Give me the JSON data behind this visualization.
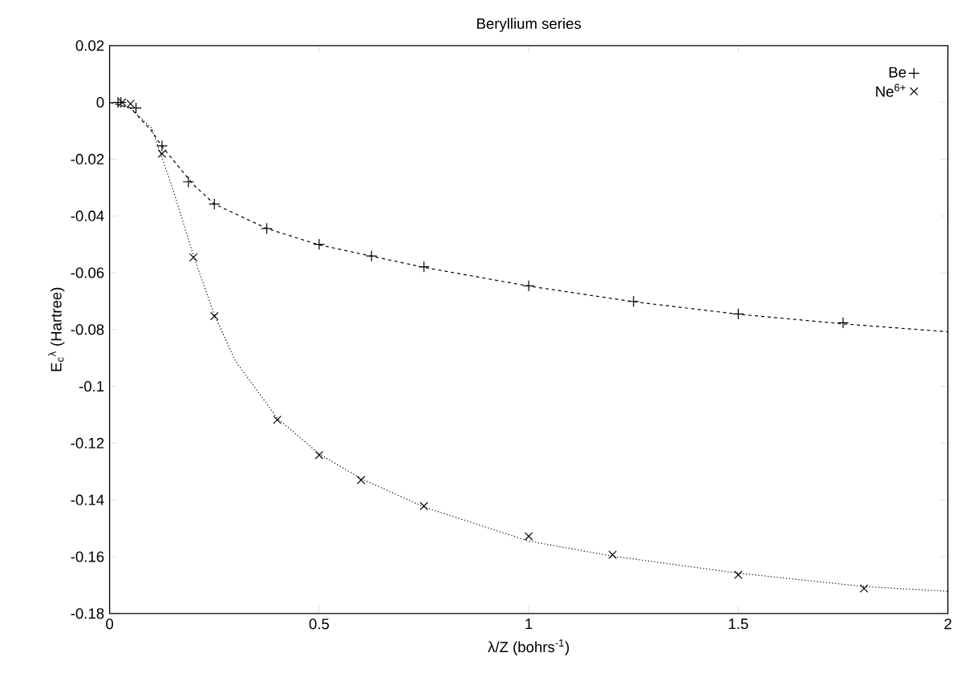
{
  "chart_data": {
    "type": "scatter",
    "title": "Beryllium series",
    "xlabel": "λ/Z (bohrs$^{-1}$)",
    "ylabel": "E$_{c}$$^{λ}$ (Hartree)",
    "xlim": [
      0,
      2
    ],
    "ylim": [
      -0.18,
      0.02
    ],
    "xticks": [
      0,
      0.5,
      1,
      1.5,
      2
    ],
    "yticks": [
      -0.18,
      -0.16,
      -0.14,
      -0.12,
      -0.1,
      -0.08,
      -0.06,
      -0.04,
      -0.02,
      0,
      0.02
    ],
    "legend": "top right",
    "grid": false,
    "series": [
      {
        "name": "Be",
        "marker": "plus",
        "color": "#000000",
        "x": [
          0.02,
          0.027,
          0.063,
          0.125,
          0.188,
          0.25,
          0.375,
          0.5,
          0.625,
          0.75,
          1,
          1.25,
          1.5,
          1.75
        ],
        "values": [
          0,
          0,
          -0.002,
          -0.0153,
          -0.028,
          -0.0358,
          -0.0444,
          -0.05,
          -0.0541,
          -0.0579,
          -0.0646,
          -0.0701,
          -0.0745,
          -0.0776
        ]
      },
      {
        "name": "Ne$^{6+}$",
        "marker": "cross",
        "color": "#000000",
        "x": [
          0.03,
          0.05,
          0.125,
          0.2,
          0.25,
          0.4,
          0.5,
          0.6,
          0.75,
          1,
          1.2,
          1.5,
          1.8
        ],
        "values": [
          0,
          -0.0005,
          -0.0181,
          -0.0546,
          -0.0753,
          -0.1118,
          -0.1242,
          -0.133,
          -0.1422,
          -0.1528,
          -0.1593,
          -0.1664,
          -0.1712
        ]
      },
      {
        "type": "line",
        "marker": "none",
        "line_style": "dashed",
        "color": "#000000",
        "x": [
          0,
          0.05,
          0.1,
          0.125,
          0.2,
          0.25,
          0.375,
          0.5,
          0.75,
          1,
          1.25,
          1.5,
          1.75,
          2
        ],
        "values": [
          0,
          -0.002,
          -0.01,
          -0.0155,
          -0.029,
          -0.0358,
          -0.0444,
          -0.0502,
          -0.0581,
          -0.0647,
          -0.0702,
          -0.0746,
          -0.078,
          -0.0808
        ]
      },
      {
        "type": "line",
        "marker": "none",
        "line_style": "dotted",
        "color": "#000000",
        "x": [
          0,
          0.05,
          0.1,
          0.15,
          0.2,
          0.25,
          0.3,
          0.4,
          0.5,
          0.6,
          0.75,
          1,
          1.2,
          1.5,
          1.8,
          2
        ],
        "values": [
          0,
          -0.002,
          -0.009,
          -0.03,
          -0.054,
          -0.0748,
          -0.091,
          -0.1112,
          -0.1238,
          -0.1325,
          -0.1425,
          -0.1545,
          -0.1598,
          -0.1658,
          -0.1705,
          -0.1722
        ]
      }
    ]
  }
}
